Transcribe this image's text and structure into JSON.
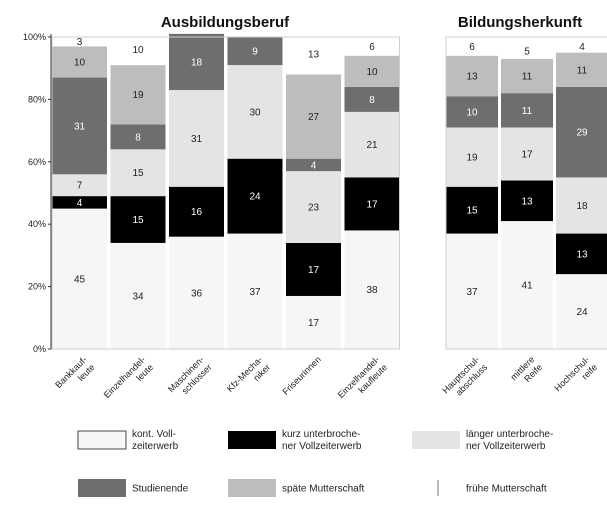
{
  "colors": {
    "kont": "#f6f6f6",
    "kurz": "#000000",
    "laenger": "#e4e4e4",
    "studium": "#6e6e6e",
    "spaete": "#bdbdbd",
    "fruehe": "#ffffff"
  },
  "chart_data": [
    {
      "type": "bar",
      "stacked": true,
      "title": "Ausbildungsberuf",
      "categories": [
        [
          "Bankkauf-",
          "leute"
        ],
        [
          "Einzelhandel-",
          "leute"
        ],
        [
          "Maschinen-",
          "schlosser"
        ],
        [
          "Kfz-Mecha-",
          "niker"
        ],
        [
          "Friseurinnen"
        ],
        [
          "Einzelhandel-",
          "kaufleute"
        ]
      ],
      "ylim": [
        0,
        100
      ],
      "yticks": [
        "0%",
        "20%",
        "40%",
        "60%",
        "80%",
        "100%"
      ],
      "series": [
        {
          "key": "kont",
          "name": "kont. Vollzeiterwerb",
          "values": [
            45,
            34,
            36,
            37,
            17,
            38
          ],
          "labels": [
            "45",
            "34",
            "36",
            "37",
            "17",
            "38"
          ]
        },
        {
          "key": "kurz",
          "name": "kurz unterbrochener Vollzeiterwerb",
          "values": [
            4,
            15,
            16,
            24,
            17,
            17
          ],
          "labels": [
            "4",
            "15",
            "16",
            "24",
            "17",
            "17"
          ]
        },
        {
          "key": "laenger",
          "name": "länger unterbrochener Vollzeiterwerb",
          "values": [
            7,
            15,
            31,
            30,
            23,
            21
          ],
          "labels": [
            "7",
            "15",
            "31",
            "30",
            "23",
            "21"
          ]
        },
        {
          "key": "studium",
          "name": "Studienende",
          "values": [
            31,
            8,
            18,
            9,
            4,
            8
          ],
          "labels": [
            "31",
            "8",
            "18",
            "9",
            "4",
            "8"
          ]
        },
        {
          "key": "spaete",
          "name": "späte Mutterschaft",
          "values": [
            10,
            19,
            0,
            0,
            27,
            10
          ],
          "labels": [
            "10",
            "19",
            "",
            "",
            "27",
            "10"
          ]
        },
        {
          "key": "fruehe",
          "name": "frühe Mutterschaft",
          "values": [
            3,
            10,
            0,
            0,
            13,
            6
          ],
          "labels": [
            "3",
            "10",
            "",
            "",
            "13",
            "6"
          ]
        }
      ]
    },
    {
      "type": "bar",
      "stacked": true,
      "title": "Bildungsherkunft",
      "categories": [
        [
          "Hauptschul-",
          "abschluss"
        ],
        [
          "mittlere",
          "Reife"
        ],
        [
          "Hochschul-",
          "reife"
        ]
      ],
      "ylim": [
        0,
        100
      ],
      "series": [
        {
          "key": "kont",
          "name": "kont. Vollzeiterwerb",
          "values": [
            37,
            41,
            24
          ],
          "labels": [
            "37",
            "41",
            "24"
          ]
        },
        {
          "key": "kurz",
          "name": "kurz unterbrochener Vollzeiterwerb",
          "values": [
            15,
            13,
            13
          ],
          "labels": [
            "15",
            "13",
            "13"
          ]
        },
        {
          "key": "laenger",
          "name": "länger unterbrochener Vollzeiterwerb",
          "values": [
            19,
            17,
            18
          ],
          "labels": [
            "19",
            "17",
            "18"
          ]
        },
        {
          "key": "studium",
          "name": "Studienende",
          "values": [
            10,
            11,
            29
          ],
          "labels": [
            "10",
            "11",
            "29"
          ]
        },
        {
          "key": "spaete",
          "name": "späte Mutterschaft",
          "values": [
            13,
            11,
            11
          ],
          "labels": [
            "13",
            "11",
            "11"
          ]
        },
        {
          "key": "fruehe",
          "name": "frühe Mutterschaft",
          "values": [
            6,
            5,
            4
          ],
          "labels": [
            "6",
            "5",
            "4"
          ]
        }
      ]
    }
  ],
  "legend": [
    {
      "key": "kont",
      "lines": [
        "kont. Voll-",
        "zeiterwerb"
      ]
    },
    {
      "key": "kurz",
      "lines": [
        "kurz unterbroche-",
        "ner Vollzeiterwerb"
      ]
    },
    {
      "key": "laenger",
      "lines": [
        "länger unterbroche-",
        "ner Vollzeiterwerb"
      ]
    },
    {
      "key": "studium",
      "lines": [
        "Studienende"
      ]
    },
    {
      "key": "spaete",
      "lines": [
        "späte Mutterschaft"
      ]
    },
    {
      "key": "fruehe",
      "lines": [
        "frühe Mutterschaft"
      ]
    }
  ]
}
